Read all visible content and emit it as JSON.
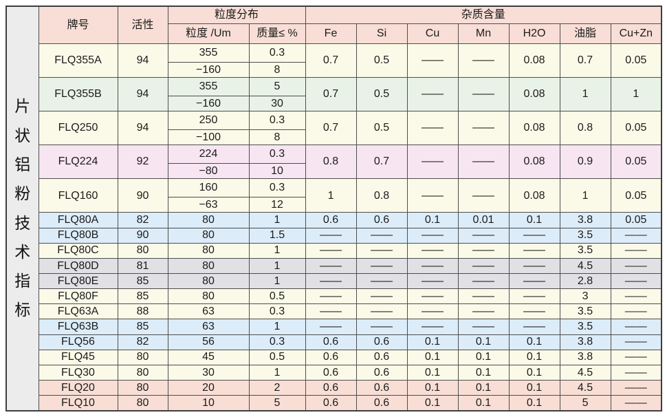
{
  "page_title": "片状铝粉技术指标",
  "colors": {
    "header_bg": "#f8ded6",
    "title_column_bg": "#ececec",
    "row_cream": "#fbfae8",
    "row_green": "#e9f2e6",
    "row_lavender": "#f7e5f2",
    "row_blue": "#dcecf9",
    "row_gray": "#e0e0e5",
    "row_salmon": "#f8ded5",
    "border": "#4d4d4d",
    "text": "#1b1b1b"
  },
  "table": {
    "headers": {
      "brand": "牌号",
      "activity": "活性",
      "size_dist": "粒度分布",
      "size": "粒度 /Um",
      "mass": "质量≤ %",
      "impurity": "杂质含量",
      "impurity_cols": [
        "Fe",
        "Si",
        "Cu",
        "Mn",
        "H2O",
        "油脂",
        "Cu+Zn"
      ]
    },
    "rows": [
      {
        "brand": "FLQ355A",
        "activity": "94",
        "bg": "cream",
        "sizes": [
          [
            "355",
            "0.3"
          ],
          [
            "−160",
            "8"
          ]
        ],
        "impurities": [
          "0.7",
          "0.5",
          "——",
          "——",
          "0.08",
          "0.7",
          "0.05"
        ]
      },
      {
        "brand": "FLQ355B",
        "activity": "94",
        "bg": "green",
        "sizes": [
          [
            "355",
            "5"
          ],
          [
            "−160",
            "30"
          ]
        ],
        "impurities": [
          "0.7",
          "0.5",
          "——",
          "——",
          "0.08",
          "1",
          "1"
        ]
      },
      {
        "brand": "FLQ250",
        "activity": "94",
        "bg": "cream",
        "sizes": [
          [
            "250",
            "0.3"
          ],
          [
            "−100",
            "8"
          ]
        ],
        "impurities": [
          "0.7",
          "0.5",
          "——",
          "——",
          "0.08",
          "0.8",
          "0.05"
        ]
      },
      {
        "brand": "FLQ224",
        "activity": "92",
        "bg": "lavender",
        "sizes": [
          [
            "224",
            "0.3"
          ],
          [
            "−80",
            "10"
          ]
        ],
        "impurities": [
          "0.8",
          "0.7",
          "——",
          "——",
          "0.08",
          "0.9",
          "0.05"
        ]
      },
      {
        "brand": "FLQ160",
        "activity": "90",
        "bg": "cream",
        "sizes": [
          [
            "160",
            "0.3"
          ],
          [
            "−63",
            "12"
          ]
        ],
        "impurities": [
          "1",
          "0.8",
          "——",
          "——",
          "0.08",
          "1",
          "0.05"
        ]
      },
      {
        "brand": "FLQ80A",
        "activity": "82",
        "bg": "blue",
        "sizes": [
          [
            "80",
            "1"
          ]
        ],
        "impurities": [
          "0.6",
          "0.6",
          "0.1",
          "0.01",
          "0.1",
          "3.8",
          "0.05"
        ]
      },
      {
        "brand": "FLQ80B",
        "activity": "90",
        "bg": "blue",
        "sizes": [
          [
            "80",
            "1.5"
          ]
        ],
        "impurities": [
          "——",
          "——",
          "——",
          "——",
          "——",
          "3.5",
          "——"
        ]
      },
      {
        "brand": "FLQ80C",
        "activity": "80",
        "bg": "cream",
        "sizes": [
          [
            "80",
            "1"
          ]
        ],
        "impurities": [
          "——",
          "——",
          "——",
          "——",
          "——",
          "3.5",
          "——"
        ]
      },
      {
        "brand": "FLQ80D",
        "activity": "81",
        "bg": "gray",
        "sizes": [
          [
            "80",
            "1"
          ]
        ],
        "impurities": [
          "——",
          "——",
          "——",
          "——",
          "——",
          "4.5",
          "——"
        ]
      },
      {
        "brand": "FLQ80E",
        "activity": "85",
        "bg": "gray",
        "sizes": [
          [
            "80",
            "1"
          ]
        ],
        "impurities": [
          "——",
          "——",
          "——",
          "——",
          "——",
          "2.8",
          "——"
        ]
      },
      {
        "brand": "FLQ80F",
        "activity": "85",
        "bg": "cream",
        "sizes": [
          [
            "80",
            "0.5"
          ]
        ],
        "impurities": [
          "——",
          "——",
          "——",
          "——",
          "——",
          "3",
          "——"
        ]
      },
      {
        "brand": "FLQ63A",
        "activity": "88",
        "bg": "cream",
        "sizes": [
          [
            "63",
            "0.3"
          ]
        ],
        "impurities": [
          "——",
          "——",
          "——",
          "——",
          "——",
          "3.5",
          "——"
        ]
      },
      {
        "brand": "FLQ63B",
        "activity": "85",
        "bg": "blue",
        "sizes": [
          [
            "63",
            "1"
          ]
        ],
        "impurities": [
          "——",
          "——",
          "——",
          "——",
          "——",
          "3.5",
          "——"
        ]
      },
      {
        "brand": "FLQ56",
        "activity": "82",
        "bg": "blue",
        "sizes": [
          [
            "56",
            "0.3"
          ]
        ],
        "impurities": [
          "0.6",
          "0.6",
          "0.1",
          "0.1",
          "0.1",
          "3.8",
          "——"
        ]
      },
      {
        "brand": "FLQ45",
        "activity": "80",
        "bg": "cream",
        "sizes": [
          [
            "45",
            "0.5"
          ]
        ],
        "impurities": [
          "0.6",
          "0.6",
          "0.1",
          "0.1",
          "0.1",
          "3.8",
          "——"
        ]
      },
      {
        "brand": "FLQ30",
        "activity": "80",
        "bg": "cream",
        "sizes": [
          [
            "30",
            "1"
          ]
        ],
        "impurities": [
          "0.6",
          "0.6",
          "0.1",
          "0.1",
          "0.1",
          "4.5",
          "——"
        ]
      },
      {
        "brand": "FLQ20",
        "activity": "80",
        "bg": "salmon",
        "sizes": [
          [
            "20",
            "2"
          ]
        ],
        "impurities": [
          "0.6",
          "0.6",
          "0.1",
          "0.1",
          "0.1",
          "4.5",
          "——"
        ]
      },
      {
        "brand": "FLQ10",
        "activity": "80",
        "bg": "salmon",
        "sizes": [
          [
            "10",
            "5"
          ]
        ],
        "impurities": [
          "0.6",
          "0.6",
          "0.1",
          "0.1",
          "0.1",
          "5",
          "——"
        ]
      }
    ]
  }
}
